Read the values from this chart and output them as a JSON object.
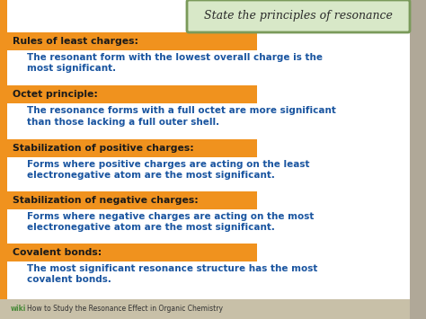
{
  "title": "State the principles of resonance",
  "bg_color": "#c8c4b8",
  "content_bg": "#ffffff",
  "title_bg": "#d8e8c8",
  "title_border": "#7a9a5a",
  "title_text_color": "#2a2a2a",
  "label_bg": "#f0921e",
  "label_text_color": "#1a1a1a",
  "body_text_color": "#1a55a0",
  "left_bar_color": "#f0921e",
  "right_bar_color": "#b0a898",
  "footer_bg": "#c8c0a8",
  "footer_text": "How to Study the Resonance Effect in Organic Chemistry",
  "wiki_text": "wiki",
  "wiki_color": "#4a8a3a",
  "footer_text_color": "#333333",
  "sections": [
    {
      "label": "Rules of least charges:",
      "body": "The resonant form with the lowest overall charge is the\nmost significant."
    },
    {
      "label": "Octet principle:",
      "body": "The resonance forms with a full octet are more significant\nthan those lacking a full outer shell."
    },
    {
      "label": "Stabilization of positive charges:",
      "body": "Forms where positive charges are acting on the least\nelectronegative atom are the most significant."
    },
    {
      "label": "Stabilization of negative charges:",
      "body": "Forms where negative charges are acting on the most\nelectronegative atom are the most significant."
    },
    {
      "label": "Covalent bonds:",
      "body": "The most significant resonance structure has the most\ncovalent bonds."
    }
  ]
}
